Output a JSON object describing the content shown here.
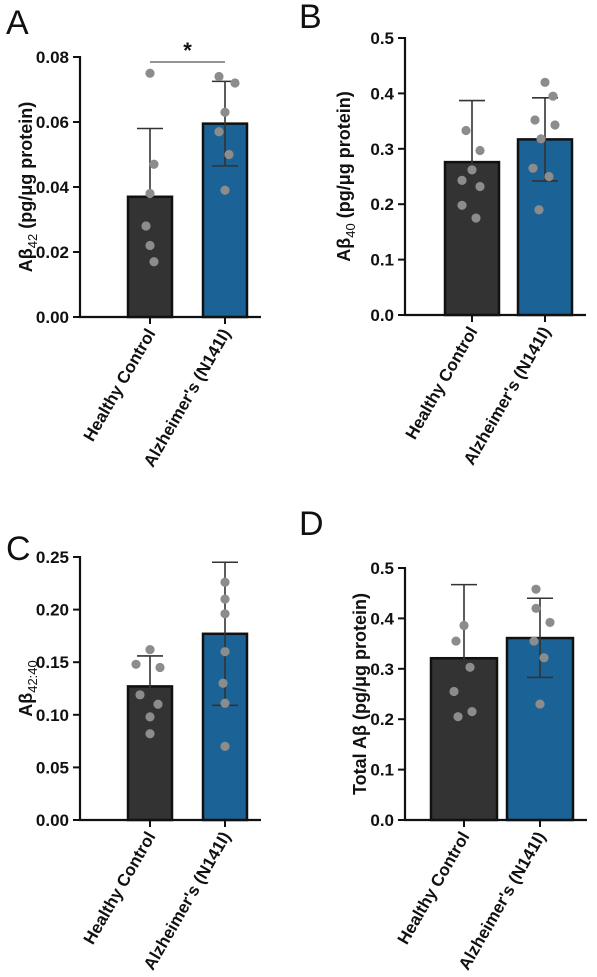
{
  "chart_data": [
    {
      "type": "bar",
      "panel": "A",
      "ylabel_main": "Aβ",
      "ylabel_sub": "42",
      "ylabel_rest": " (pg/μg protein)",
      "categories": [
        "Healthy Control",
        "Alzheimer's (N141I)"
      ],
      "values": [
        0.037,
        0.0595
      ],
      "error_low": [
        0.0165,
        0.0465
      ],
      "error_high": [
        0.058,
        0.0725
      ],
      "points": [
        [
          0.075,
          0.047,
          0.038,
          0.028,
          0.022,
          0.017
        ],
        [
          0.074,
          0.072,
          0.063,
          0.057,
          0.05,
          0.039
        ]
      ],
      "ylim": [
        0,
        0.08
      ],
      "yticks": [
        "0.00",
        "0.02",
        "0.04",
        "0.06",
        "0.08"
      ],
      "significance": "*",
      "colors": [
        "#333333",
        "#1b6396"
      ]
    },
    {
      "type": "bar",
      "panel": "B",
      "ylabel_main": "Aβ",
      "ylabel_sub": "40",
      "ylabel_rest": " (pg/μg protein)",
      "categories": [
        "Healthy Control",
        "Alzheimer's (N141I)"
      ],
      "values": [
        0.276,
        0.317
      ],
      "error_low": [
        0.165,
        0.242
      ],
      "error_high": [
        0.387,
        0.392
      ],
      "points": [
        [
          0.333,
          0.297,
          0.262,
          0.243,
          0.232,
          0.198,
          0.175
        ],
        [
          0.42,
          0.395,
          0.352,
          0.343,
          0.318,
          0.265,
          0.25,
          0.19
        ]
      ],
      "ylim": [
        0,
        0.5
      ],
      "yticks": [
        "0.0",
        "0.1",
        "0.2",
        "0.3",
        "0.4",
        "0.5"
      ],
      "significance": "",
      "colors": [
        "#333333",
        "#1b6396"
      ]
    },
    {
      "type": "bar",
      "panel": "C",
      "ylabel_main": "Aβ",
      "ylabel_sub": "42:40",
      "ylabel_rest": "",
      "categories": [
        "Healthy Control",
        "Alzheimer's (N141I)"
      ],
      "values": [
        0.127,
        0.177
      ],
      "error_low": [
        0.099,
        0.109
      ],
      "error_high": [
        0.156,
        0.245
      ],
      "points": [
        [
          0.162,
          0.148,
          0.145,
          0.119,
          0.11,
          0.098,
          0.082
        ],
        [
          0.226,
          0.21,
          0.196,
          0.16,
          0.13,
          0.111,
          0.07
        ]
      ],
      "ylim": [
        0,
        0.25
      ],
      "yticks": [
        "0.00",
        "0.05",
        "0.10",
        "0.15",
        "0.20",
        "0.25"
      ],
      "significance": "",
      "colors": [
        "#333333",
        "#1b6396"
      ]
    },
    {
      "type": "bar",
      "panel": "D",
      "ylabel_main": "Total Aβ",
      "ylabel_sub": "",
      "ylabel_rest": " (pg/μg protein)",
      "categories": [
        "Healthy Control",
        "Alzheimer's (N141I)"
      ],
      "values": [
        0.321,
        0.361
      ],
      "error_low": [
        0.178,
        0.283
      ],
      "error_high": [
        0.467,
        0.44
      ],
      "points": [
        [
          0.386,
          0.355,
          0.303,
          0.255,
          0.215,
          0.205
        ],
        [
          0.458,
          0.42,
          0.392,
          0.355,
          0.322,
          0.23
        ]
      ],
      "ylim": [
        0,
        0.5
      ],
      "yticks": [
        "0.0",
        "0.1",
        "0.2",
        "0.3",
        "0.4",
        "0.5"
      ],
      "significance": "",
      "colors": [
        "#333333",
        "#1b6396"
      ]
    }
  ]
}
